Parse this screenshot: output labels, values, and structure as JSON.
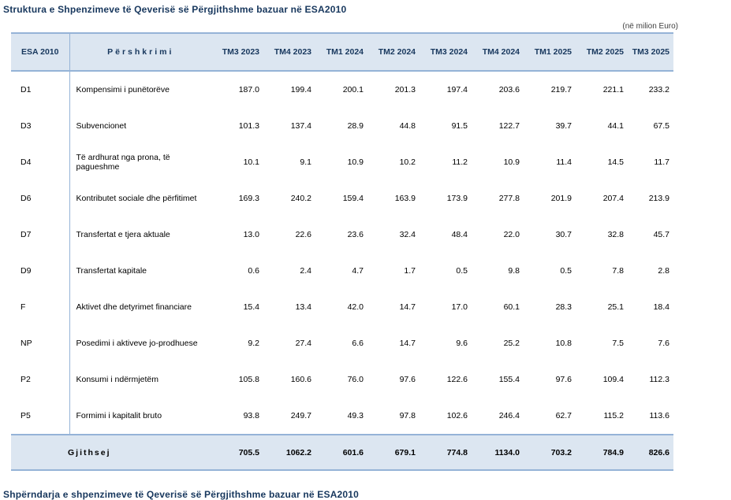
{
  "page": {
    "title_top": "Struktura e Shpenzimeve të Qeverisë së Përgjithshme bazuar në ESA2010",
    "unit_note": "(në milion Euro)",
    "title_bottom": "Shpërndarja e shpenzimeve të Qeverisë së Përgjithshme bazuar në ESA2010"
  },
  "table": {
    "col_code_header": "ESA 2010",
    "col_desc_header": "Përshkrimi",
    "period_headers": [
      "TM3 2023",
      "TM4 2023",
      "TM1 2024",
      "TM2 2024",
      "TM3 2024",
      "TM4 2024",
      "TM1 2025",
      "TM2 2025",
      "TM3 2025"
    ],
    "rows": [
      {
        "code": "D1",
        "desc": "Kompensimi i punëtorëve",
        "values": [
          "187.0",
          "199.4",
          "200.1",
          "201.3",
          "197.4",
          "203.6",
          "219.7",
          "221.1",
          "233.2"
        ]
      },
      {
        "code": "D3",
        "desc": "Subvencionet",
        "values": [
          "101.3",
          "137.4",
          "28.9",
          "44.8",
          "91.5",
          "122.7",
          "39.7",
          "44.1",
          "67.5"
        ]
      },
      {
        "code": "D4",
        "desc": "Të ardhurat nga prona, të pagueshme",
        "values": [
          "10.1",
          "9.1",
          "10.9",
          "10.2",
          "11.2",
          "10.9",
          "11.4",
          "14.5",
          "11.7"
        ]
      },
      {
        "code": "D6",
        "desc": "Kontributet sociale dhe përfitimet",
        "values": [
          "169.3",
          "240.2",
          "159.4",
          "163.9",
          "173.9",
          "277.8",
          "201.9",
          "207.4",
          "213.9"
        ]
      },
      {
        "code": "D7",
        "desc": "Transfertat e tjera aktuale",
        "values": [
          "13.0",
          "22.6",
          "23.6",
          "32.4",
          "48.4",
          "22.0",
          "30.7",
          "32.8",
          "45.7"
        ]
      },
      {
        "code": "D9",
        "desc": "Transfertat kapitale",
        "values": [
          "0.6",
          "2.4",
          "4.7",
          "1.7",
          "0.5",
          "9.8",
          "0.5",
          "7.8",
          "2.8"
        ]
      },
      {
        "code": "F",
        "desc": "Aktivet dhe detyrimet financiare",
        "values": [
          "15.4",
          "13.4",
          "42.0",
          "14.7",
          "17.0",
          "60.1",
          "28.3",
          "25.1",
          "18.4"
        ]
      },
      {
        "code": "NP",
        "desc": "Posedimi i aktiveve jo-prodhuese",
        "values": [
          "9.2",
          "27.4",
          "6.6",
          "14.7",
          "9.6",
          "25.2",
          "10.8",
          "7.5",
          "7.6"
        ]
      },
      {
        "code": "P2",
        "desc": "Konsumi i ndërmjetëm",
        "values": [
          "105.8",
          "160.6",
          "76.0",
          "97.6",
          "122.6",
          "155.4",
          "97.6",
          "109.4",
          "112.3"
        ]
      },
      {
        "code": "P5",
        "desc": "Formimi i kapitalit bruto",
        "values": [
          "93.8",
          "249.7",
          "49.3",
          "97.8",
          "102.6",
          "246.4",
          "62.7",
          "115.2",
          "113.6"
        ]
      }
    ],
    "total": {
      "label": "Gjithsej",
      "values": [
        "705.5",
        "1062.2",
        "601.6",
        "679.1",
        "774.8",
        "1134.0",
        "703.2",
        "784.9",
        "826.6"
      ]
    }
  },
  "colors": {
    "header_background": "#dce6f1",
    "rule_blue": "#95b3d7",
    "title_text": "#17375d",
    "body_text": "#000000"
  }
}
